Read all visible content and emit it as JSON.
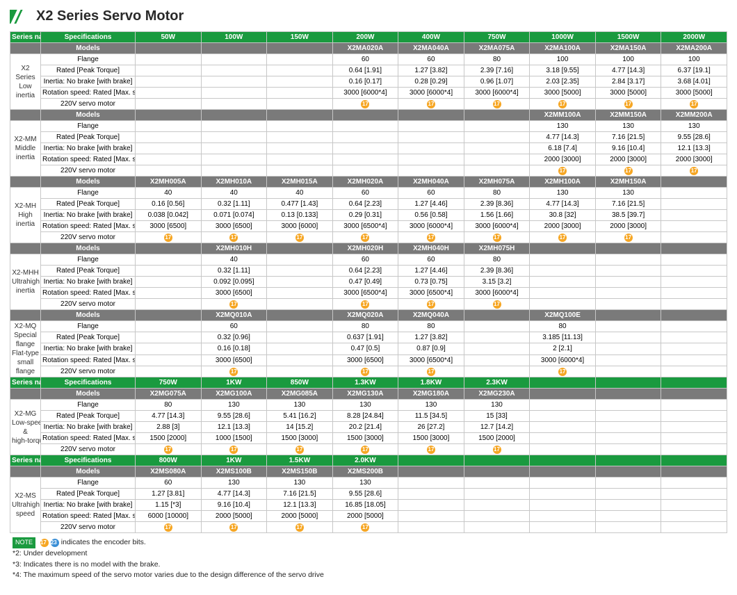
{
  "title": "X2 Series Servo Motor",
  "hdr_series": "Series name",
  "hdr_spec": "Specifications",
  "hdr_models": "Models",
  "row_labels": {
    "flange": "Flange",
    "rated": "Rated [Peak Torque]",
    "inertia": "Inertia: No brake [with brake]",
    "speed": "Rotation speed: Rated [Max. speed]",
    "volt": "220V servo motor"
  },
  "power_row1": [
    "50W",
    "100W",
    "150W",
    "200W",
    "400W",
    "750W",
    "1000W",
    "1500W",
    "2000W"
  ],
  "s1": {
    "name": "X2 Series Low inertia",
    "models": [
      "",
      "",
      "",
      "X2MA020A",
      "X2MA040A",
      "X2MA075A",
      "X2MA100A",
      "X2MA150A",
      "X2MA200A"
    ],
    "flange": [
      "",
      "",
      "",
      "60",
      "60",
      "80",
      "100",
      "100",
      "100"
    ],
    "rated": [
      "",
      "",
      "",
      "0.64 [1.91]",
      "1.27 [3.82]",
      "2.39 [7.16]",
      "3.18 [9.55]",
      "4.77 [14.3]",
      "6.37 [19.1]"
    ],
    "inertia": [
      "",
      "",
      "",
      "0.16 [0.17]",
      "0.28 [0.29]",
      "0.96 [1.07]",
      "2.03 [2.35]",
      "2.84 [3.17]",
      "3.68 [4.01]"
    ],
    "speed": [
      "",
      "",
      "",
      "3000 [6000*4]",
      "3000 [6000*4]",
      "3000 [6000*4]",
      "3000 [5000]",
      "3000 [5000]",
      "3000 [5000]"
    ],
    "volt": [
      "",
      "",
      "",
      "@",
      "@",
      "@",
      "@",
      "@",
      "@"
    ]
  },
  "s2": {
    "name": "X2-MM Middle inertia",
    "models": [
      "",
      "",
      "",
      "",
      "",
      "",
      "X2MM100A",
      "X2MM150A",
      "X2MM200A"
    ],
    "flange": [
      "",
      "",
      "",
      "",
      "",
      "",
      "130",
      "130",
      "130"
    ],
    "rated": [
      "",
      "",
      "",
      "",
      "",
      "",
      "4.77 [14.3]",
      "7.16 [21.5]",
      "9.55 [28.6]"
    ],
    "inertia": [
      "",
      "",
      "",
      "",
      "",
      "",
      "6.18 [7.4]",
      "9.16 [10.4]",
      "12.1 [13.3]"
    ],
    "speed": [
      "",
      "",
      "",
      "",
      "",
      "",
      "2000 [3000]",
      "2000 [3000]",
      "2000 [3000]"
    ],
    "volt": [
      "",
      "",
      "",
      "",
      "",
      "",
      "@",
      "@",
      "@"
    ]
  },
  "s3": {
    "name": "X2-MH High inertia",
    "models": [
      "X2MH005A",
      "X2MH010A",
      "X2MH015A",
      "X2MH020A",
      "X2MH040A",
      "X2MH075A",
      "X2MH100A",
      "X2MH150A",
      ""
    ],
    "flange": [
      "40",
      "40",
      "40",
      "60",
      "60",
      "80",
      "130",
      "130",
      ""
    ],
    "rated": [
      "0.16 [0.56]",
      "0.32 [1.11]",
      "0.477 [1.43]",
      "0.64 [2.23]",
      "1.27 [4.46]",
      "2.39 [8.36]",
      "4.77 [14.3]",
      "7.16 [21.5]",
      ""
    ],
    "inertia": [
      "0.038 [0.042]",
      "0.071 [0.074]",
      "0.13 [0.133]",
      "0.29 [0.31]",
      "0.56 [0.58]",
      "1.56 [1.66]",
      "30.8 [32]",
      "38.5 [39.7]",
      ""
    ],
    "speed": [
      "3000 [6500]",
      "3000 [6500]",
      "3000 [6000]",
      "3000 [6500*4]",
      "3000 [6000*4]",
      "3000 [6000*4]",
      "2000 [3000]",
      "2000 [3000]",
      ""
    ],
    "volt": [
      "@",
      "@",
      "@",
      "@",
      "@",
      "@",
      "@",
      "@",
      ""
    ]
  },
  "s4": {
    "name": "X2-MHH Ultrahigh inertia",
    "models": [
      "",
      "X2MH010H",
      "",
      "X2MH020H",
      "X2MH040H",
      "X2MH075H",
      "",
      "",
      ""
    ],
    "flange": [
      "",
      "40",
      "",
      "60",
      "60",
      "80",
      "",
      "",
      ""
    ],
    "rated": [
      "",
      "0.32 [1.11]",
      "",
      "0.64 [2.23]",
      "1.27 [4.46]",
      "2.39 [8.36]",
      "",
      "",
      ""
    ],
    "inertia": [
      "",
      "0.092 [0.095]",
      "",
      "0.47 [0.49]",
      "0.73 [0.75]",
      "3.15 [3.2]",
      "",
      "",
      ""
    ],
    "speed": [
      "",
      "3000 [6500]",
      "",
      "3000 [6500*4]",
      "3000 [6500*4]",
      "3000 [6000*4]",
      "",
      "",
      ""
    ],
    "volt": [
      "",
      "@",
      "",
      "@",
      "@",
      "@",
      "",
      "",
      ""
    ]
  },
  "s5": {
    "name": "X2-MQ Special flange Flat-type small flange",
    "models": [
      "",
      "X2MQ010A",
      "",
      "X2MQ020A",
      "X2MQ040A",
      "",
      "X2MQ100E",
      "",
      ""
    ],
    "flange": [
      "",
      "60",
      "",
      "80",
      "80",
      "",
      "80",
      "",
      ""
    ],
    "rated": [
      "",
      "0.32 [0.96]",
      "",
      "0.637 [1.91]",
      "1.27 [3.82]",
      "",
      "3.185 [11.13]",
      "",
      ""
    ],
    "inertia": [
      "",
      "0.16 [0.18]",
      "",
      "0.47 [0.5]",
      "0.87 [0.9]",
      "",
      "2 [2.1]",
      "",
      ""
    ],
    "speed": [
      "",
      "3000 [6500]",
      "",
      "3000 [6500]",
      "3000 [6500*4]",
      "",
      "3000 [6000*4]",
      "",
      ""
    ],
    "volt": [
      "",
      "@",
      "",
      "@",
      "@",
      "",
      "@",
      "",
      ""
    ]
  },
  "power_row2": [
    "750W",
    "1KW",
    "850W",
    "1.3KW",
    "1.8KW",
    "2.3KW",
    "",
    "",
    ""
  ],
  "s6": {
    "name": "X2-MG Low-speed & high-torque",
    "models": [
      "X2MG075A",
      "X2MG100A",
      "X2MG085A",
      "X2MG130A",
      "X2MG180A",
      "X2MG230A",
      "",
      "",
      ""
    ],
    "flange": [
      "80",
      "130",
      "130",
      "130",
      "130",
      "130",
      "",
      "",
      ""
    ],
    "rated": [
      "4.77 [14.3]",
      "9.55 [28.6]",
      "5.41 [16.2]",
      "8.28 [24.84]",
      "11.5 [34.5]",
      "15 [33]",
      "",
      "",
      ""
    ],
    "inertia": [
      "2.88 [3]",
      "12.1 [13.3]",
      "14 [15.2]",
      "20.2 [21.4]",
      "26 [27.2]",
      "12.7 [14.2]",
      "",
      "",
      ""
    ],
    "speed": [
      "1500 [2000]",
      "1000 [1500]",
      "1500 [3000]",
      "1500 [3000]",
      "1500 [3000]",
      "1500 [2000]",
      "",
      "",
      ""
    ],
    "volt": [
      "@",
      "@",
      "@",
      "@",
      "@",
      "@",
      "",
      "",
      ""
    ]
  },
  "power_row3": [
    "800W",
    "1KW",
    "1.5KW",
    "2.0KW",
    "",
    "",
    "",
    "",
    ""
  ],
  "s7": {
    "name": "X2-MS Ultrahigh speed",
    "models": [
      "X2MS080A",
      "X2MS100B",
      "X2MS150B",
      "X2MS200B",
      "",
      "",
      "",
      "",
      ""
    ],
    "flange": [
      "60",
      "130",
      "130",
      "130",
      "",
      "",
      "",
      "",
      ""
    ],
    "rated": [
      "1.27 [3.81]",
      "4.77 [14.3]",
      "7.16 [21.5]",
      "9.55 [28.6]",
      "",
      "",
      "",
      "",
      ""
    ],
    "inertia": [
      "1.15 [*3]",
      "9.16 [10.4]",
      "12.1 [13.3]",
      "16.85 [18.05]",
      "",
      "",
      "",
      "",
      ""
    ],
    "speed": [
      "6000 [10000]",
      "2000 [5000]",
      "2000 [5000]",
      "2000 [5000]",
      "",
      "",
      "",
      "",
      ""
    ],
    "volt": [
      "@",
      "@",
      "@",
      "@",
      "",
      "",
      "",
      "",
      ""
    ]
  },
  "notes": {
    "tag": "NOTE",
    "n1": "indicates the encoder bits.",
    "n2": "*2: Under development",
    "n3": "*3: Indicates there is no model with the brake.",
    "n4": "*4: The maximum speed of the servo motor varies due to the design difference of the servo drive"
  }
}
